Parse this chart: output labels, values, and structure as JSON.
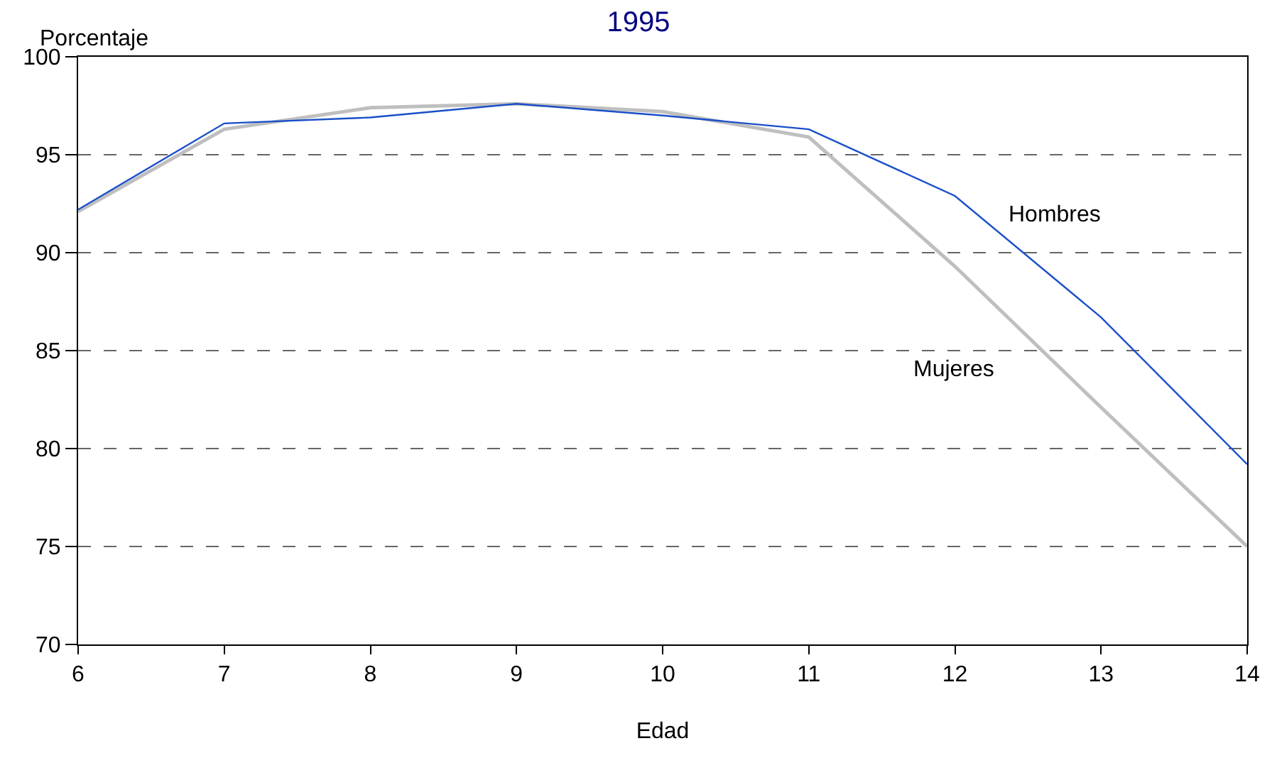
{
  "chart_data": {
    "type": "line",
    "title": "1995",
    "xlabel": "Edad",
    "ylabel": "Porcentaje",
    "x": [
      6,
      7,
      8,
      9,
      10,
      11,
      12,
      13,
      14
    ],
    "series": [
      {
        "name": "Hombres",
        "color": "#1a4fc9",
        "values": [
          92.2,
          96.6,
          96.9,
          97.6,
          97.0,
          96.3,
          92.9,
          86.7,
          79.2
        ]
      },
      {
        "name": "Mujeres",
        "color": "#bfbfbf",
        "values": [
          92.1,
          96.3,
          97.4,
          97.6,
          97.2,
          95.9,
          89.3,
          82.1,
          75.0
        ]
      }
    ],
    "xlim": [
      6,
      14
    ],
    "xticks": [
      6,
      7,
      8,
      9,
      10,
      11,
      12,
      13,
      14
    ],
    "ylim": [
      70,
      100
    ],
    "yticks": [
      70,
      75,
      80,
      85,
      90,
      95,
      100
    ],
    "grid": "y",
    "legend": false,
    "marker": "none",
    "line_style": "solid"
  }
}
